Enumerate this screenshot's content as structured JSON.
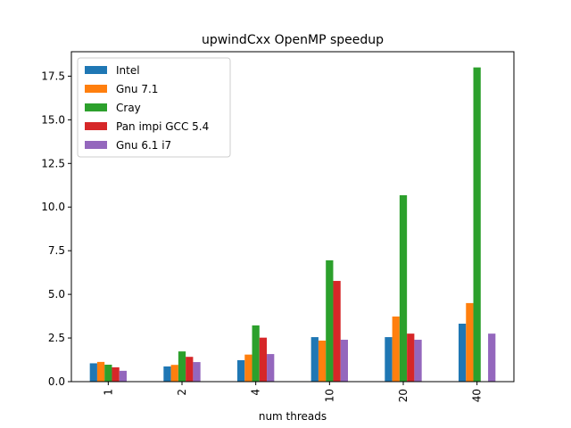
{
  "chart_data": {
    "type": "bar",
    "title": "upwindCxx OpenMP speedup",
    "xlabel": "num threads",
    "ylabel": "",
    "categories": [
      "1",
      "2",
      "4",
      "10",
      "20",
      "40"
    ],
    "ylim": [
      0,
      18.9
    ],
    "yticks": [
      0.0,
      2.5,
      5.0,
      7.5,
      10.0,
      12.5,
      15.0,
      17.5
    ],
    "ytick_labels": [
      "0.0",
      "2.5",
      "5.0",
      "7.5",
      "10.0",
      "12.5",
      "15.0",
      "17.5"
    ],
    "x_tick_rotation": "vertical",
    "grid": false,
    "legend_position": "top-left",
    "series": [
      {
        "name": "Intel",
        "color": "#1f77b4",
        "values": [
          1.05,
          0.87,
          1.23,
          2.55,
          2.55,
          3.32
        ]
      },
      {
        "name": "Gnu 7.1",
        "color": "#ff7f0e",
        "values": [
          1.13,
          0.96,
          1.55,
          2.35,
          3.73,
          4.5
        ]
      },
      {
        "name": "Cray",
        "color": "#2ca02c",
        "values": [
          0.97,
          1.73,
          3.22,
          6.95,
          10.68,
          18.0
        ]
      },
      {
        "name": "Pan impi GCC 5.4",
        "color": "#d62728",
        "values": [
          0.82,
          1.42,
          2.52,
          5.77,
          2.75,
          0
        ]
      },
      {
        "name": "Gnu 6.1 i7",
        "color": "#9467bd",
        "values": [
          0.62,
          1.12,
          1.58,
          2.4,
          2.4,
          2.75
        ]
      }
    ]
  }
}
